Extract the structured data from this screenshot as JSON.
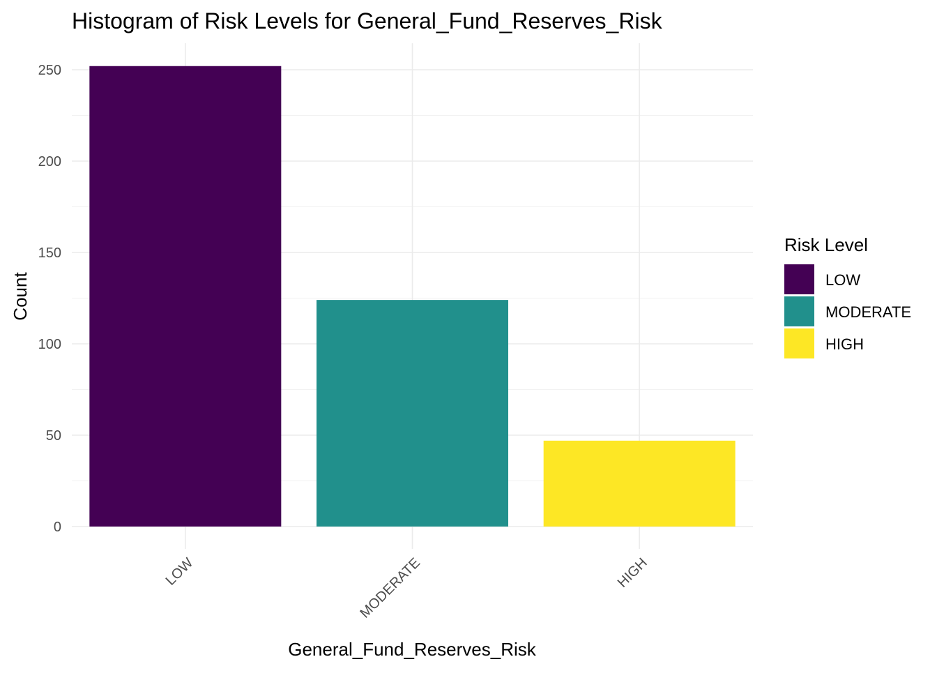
{
  "chart_data": {
    "type": "bar",
    "title": "Histogram of Risk Levels for General_Fund_Reserves_Risk",
    "xlabel": "General_Fund_Reserves_Risk",
    "ylabel": "Count",
    "categories": [
      "LOW",
      "MODERATE",
      "HIGH"
    ],
    "values": [
      252,
      124,
      47
    ],
    "colors": [
      "#440154",
      "#21908C",
      "#FDE725"
    ],
    "ylim": [
      0,
      265
    ],
    "yticks": [
      0,
      50,
      100,
      150,
      200,
      250
    ],
    "grid": true,
    "legend": {
      "title": "Risk Level",
      "position": "right",
      "entries": [
        "LOW",
        "MODERATE",
        "HIGH"
      ]
    }
  }
}
